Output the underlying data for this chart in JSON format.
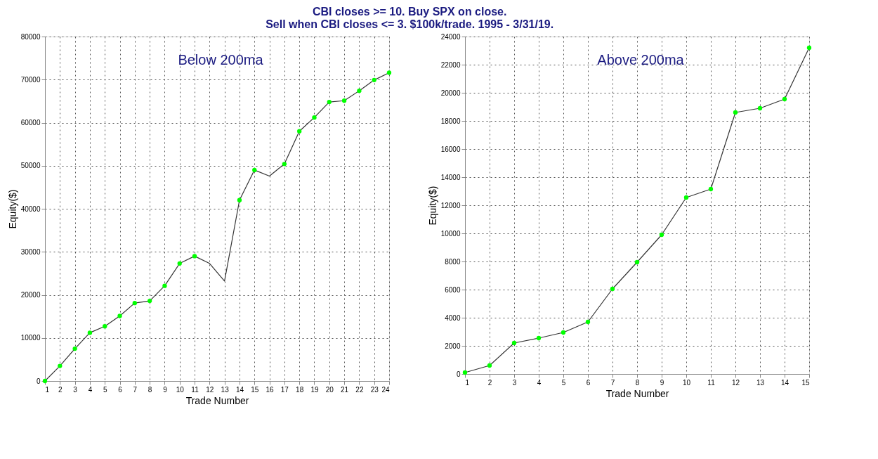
{
  "chart_data": [
    {
      "type": "line",
      "title": "CBI closes >= 10. Buy SPX on close.\nSell when CBI closes <= 3. $100k/trade. 1995 - 3/31/19.",
      "annotations": [
        "Below 200ma"
      ],
      "xlabel": "Trade Number",
      "ylabel": "Equity($)",
      "x": [
        1,
        2,
        3,
        4,
        5,
        6,
        7,
        8,
        9,
        10,
        11,
        12,
        13,
        14,
        15,
        16,
        17,
        18,
        19,
        20,
        21,
        22,
        23,
        24
      ],
      "series": [
        {
          "color": "#333333",
          "marker": "none",
          "values": [
            0,
            3500,
            7500,
            11200,
            12700,
            15100,
            18100,
            18600,
            22100,
            27300,
            29000,
            27300,
            23200,
            42000,
            49000,
            47600,
            50400,
            58000,
            61200,
            64800,
            65100,
            67400,
            69900,
            71600
          ]
        },
        {
          "type": "scatter",
          "color": "#00ff00",
          "marker": "circle",
          "values": [
            0,
            3500,
            7500,
            11200,
            12700,
            15100,
            18100,
            18600,
            22100,
            27300,
            29000,
            null,
            null,
            42000,
            49000,
            null,
            50400,
            58000,
            61200,
            64800,
            65100,
            67400,
            69900,
            71600
          ]
        }
      ],
      "xlim": [
        1,
        24
      ],
      "xticks": [
        1,
        2,
        3,
        4,
        5,
        6,
        7,
        8,
        9,
        10,
        11,
        12,
        13,
        14,
        15,
        16,
        17,
        18,
        19,
        20,
        21,
        22,
        23,
        24
      ],
      "ylim": [
        0,
        80000
      ],
      "yticks": [
        0,
        10000,
        20000,
        30000,
        40000,
        50000,
        60000,
        70000,
        80000
      ],
      "grid": true
    },
    {
      "type": "line",
      "annotations": [
        "Above 200ma"
      ],
      "xlabel": "Trade Number",
      "ylabel": "Equity($)",
      "x": [
        1,
        2,
        3,
        4,
        5,
        6,
        7,
        8,
        9,
        10,
        11,
        12,
        13,
        14,
        15
      ],
      "series": [
        {
          "color": "#333333",
          "marker": "none",
          "values": [
            100,
            600,
            2200,
            2550,
            2950,
            3700,
            6050,
            7950,
            9900,
            12550,
            13150,
            18600,
            18900,
            19550,
            23200
          ]
        },
        {
          "type": "scatter",
          "color": "#00ff00",
          "marker": "circle",
          "values": [
            100,
            600,
            2200,
            2550,
            2950,
            3700,
            6050,
            7950,
            9900,
            12550,
            13150,
            18600,
            18900,
            19550,
            23200
          ]
        }
      ],
      "xlim": [
        1,
        15
      ],
      "xticks": [
        1,
        2,
        3,
        4,
        5,
        6,
        7,
        8,
        9,
        10,
        11,
        12,
        13,
        14,
        15
      ],
      "ylim": [
        0,
        24000
      ],
      "yticks": [
        0,
        2000,
        4000,
        6000,
        8000,
        10000,
        12000,
        14000,
        16000,
        18000,
        20000,
        22000,
        24000
      ],
      "grid": true
    }
  ]
}
